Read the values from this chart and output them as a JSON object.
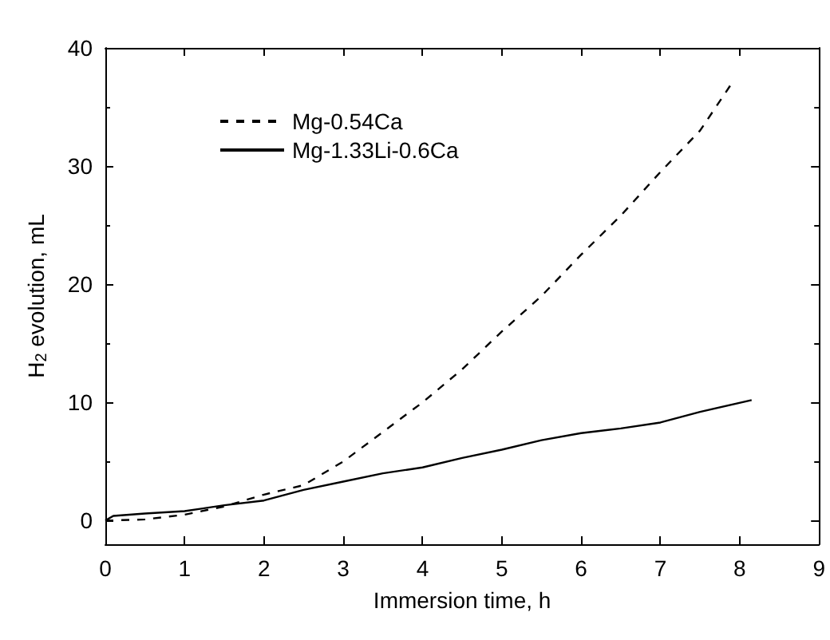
{
  "chart_data": {
    "type": "line",
    "xlabel": "Immersion time, h",
    "ylabel": "H$_{2}$ evolution, mL",
    "xlim": [
      0,
      9
    ],
    "xticks": [
      0,
      1,
      2,
      3,
      4,
      5,
      6,
      7,
      8,
      9
    ],
    "ylim": [
      -2,
      40
    ],
    "yticks": [
      0,
      10,
      20,
      30,
      40
    ],
    "grid": false,
    "legend": "top left",
    "marker": "none",
    "series": [
      {
        "name": "Mg-0.54Ca",
        "color": "#000000",
        "line_style": "dashed",
        "x": [
          0,
          0.5,
          1,
          1.5,
          2,
          2.5,
          3,
          3.5,
          4,
          4.5,
          5,
          5.5,
          6,
          6.5,
          7,
          7.5,
          7.9
        ],
        "values": [
          0,
          0.1,
          0.5,
          1.2,
          2.2,
          3,
          5,
          7.5,
          10,
          12.8,
          16,
          19,
          22.5,
          25.8,
          29.5,
          33,
          37
        ]
      },
      {
        "name": "Mg-1.33Li-0.6Ca",
        "color": "#000000",
        "line_style": "solid",
        "x": [
          0,
          0.1,
          0.5,
          1,
          1.5,
          2,
          2.5,
          3,
          3.5,
          4,
          4.5,
          5,
          5.5,
          6,
          6.5,
          7,
          7.5,
          8.15
        ],
        "values": [
          0,
          0.4,
          0.6,
          0.8,
          1.3,
          1.7,
          2.6,
          3.3,
          4,
          4.5,
          5.3,
          6,
          6.8,
          7.4,
          7.8,
          8.3,
          9.2,
          10.2
        ]
      }
    ]
  }
}
